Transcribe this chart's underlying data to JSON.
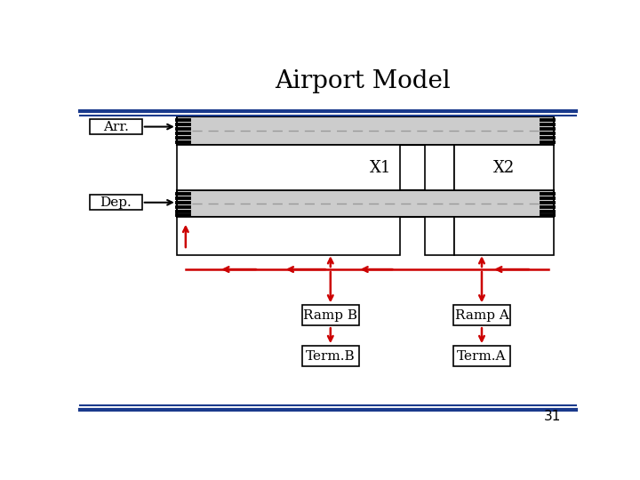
{
  "title": "Airport Model",
  "title_fontsize": 20,
  "background_color": "#ffffff",
  "header_line_color": "#1a3a8c",
  "runway_color": "#cccccc",
  "runway_border": "#000000",
  "box_color": "#ffffff",
  "box_border": "#000000",
  "arrow_color": "#cc0000",
  "text_color": "#000000",
  "label_arr": "Arr.",
  "label_dep": "Dep.",
  "label_x1": "X1",
  "label_x2": "X2",
  "label_ramp_b": "Ramp B",
  "label_ramp_a": "Ramp A",
  "label_term_b": "Term.B",
  "label_term_a": "Term.A",
  "page_num": "31"
}
